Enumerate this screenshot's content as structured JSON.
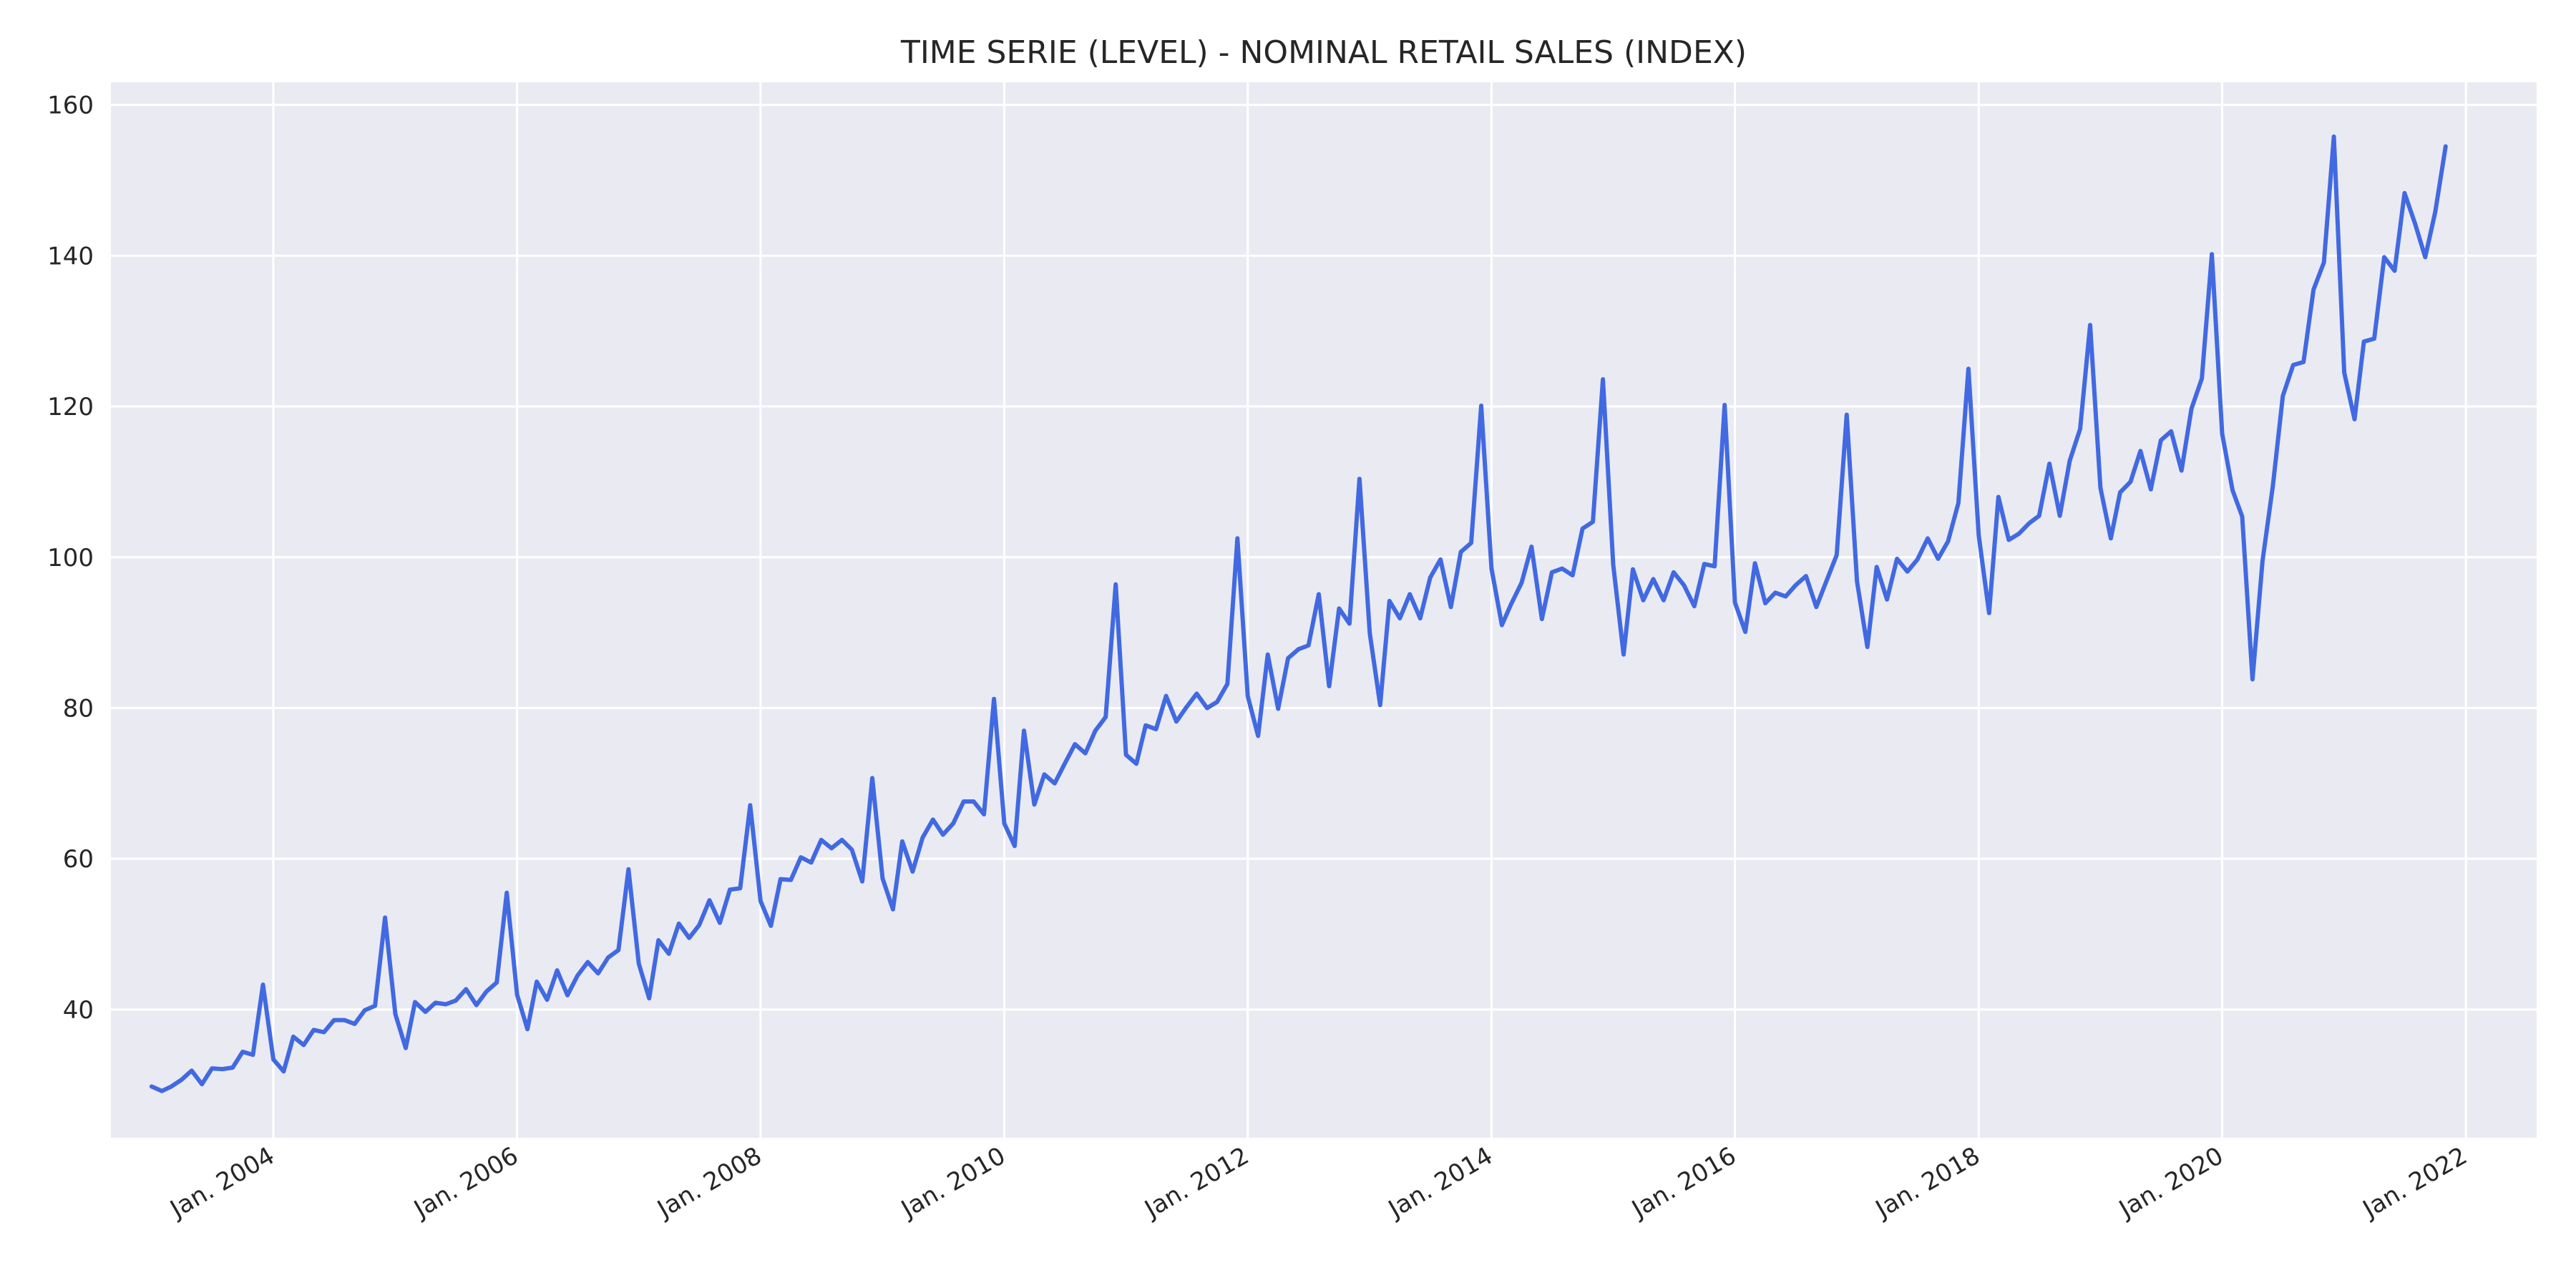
{
  "chart_data": {
    "type": "line",
    "title": "TIME SERIE (LEVEL) - NOMINAL RETAIL SALES (INDEX)",
    "xlabel": "",
    "ylabel": "",
    "x_range": [
      "2002-09-01",
      "2022-08-01"
    ],
    "ylim": [
      23,
      163
    ],
    "grid": true,
    "legend": "none",
    "x_ticks": [
      {
        "date": "2004-01-01",
        "label": "Jan. 2004"
      },
      {
        "date": "2006-01-01",
        "label": "Jan. 2006"
      },
      {
        "date": "2008-01-01",
        "label": "Jan. 2008"
      },
      {
        "date": "2010-01-01",
        "label": "Jan. 2010"
      },
      {
        "date": "2012-01-01",
        "label": "Jan. 2012"
      },
      {
        "date": "2014-01-01",
        "label": "Jan. 2014"
      },
      {
        "date": "2016-01-01",
        "label": "Jan. 2016"
      },
      {
        "date": "2018-01-01",
        "label": "Jan. 2018"
      },
      {
        "date": "2020-01-01",
        "label": "Jan. 2020"
      },
      {
        "date": "2022-01-01",
        "label": "Jan. 2022"
      }
    ],
    "y_ticks": [
      40,
      60,
      80,
      100,
      120,
      140,
      160
    ],
    "colors": {
      "line": "#4169e1",
      "plot_bg": "#eaeaf2",
      "grid": "#ffffff"
    },
    "series": [
      {
        "start": "2003-01",
        "frequency": "monthly",
        "values": [
          29.8,
          29.2,
          29.8,
          30.7,
          31.9,
          30.1,
          32.2,
          32.1,
          32.3,
          34.4,
          34.0,
          43.3,
          33.4,
          31.8,
          36.4,
          35.3,
          37.3,
          37.0,
          38.6,
          38.6,
          38.1,
          39.9,
          40.5,
          52.2,
          39.4,
          34.9,
          41.0,
          39.7,
          40.9,
          40.7,
          41.2,
          42.7,
          40.6,
          42.4,
          43.6,
          55.5,
          42.0,
          37.4,
          43.7,
          41.3,
          45.2,
          41.9,
          44.5,
          46.3,
          44.8,
          46.9,
          47.9,
          58.6,
          46.1,
          41.5,
          49.2,
          47.4,
          51.4,
          49.5,
          51.2,
          54.5,
          51.5,
          55.9,
          56.1,
          67.1,
          54.4,
          51.1,
          57.3,
          57.2,
          60.2,
          59.5,
          62.5,
          61.4,
          62.5,
          61.2,
          57.0,
          70.7,
          57.4,
          53.3,
          62.3,
          58.3,
          62.8,
          65.2,
          63.2,
          64.7,
          67.6,
          67.6,
          65.9,
          81.2,
          64.7,
          61.7,
          77.0,
          67.2,
          71.2,
          70.0,
          72.6,
          75.2,
          74.0,
          77.0,
          78.8,
          96.4,
          73.8,
          72.6,
          77.7,
          77.2,
          81.6,
          78.2,
          80.1,
          81.9,
          80.0,
          80.8,
          83.2,
          102.5,
          81.6,
          76.3,
          87.1,
          79.9,
          86.6,
          87.8,
          88.3,
          95.1,
          82.9,
          93.2,
          91.2,
          110.4,
          89.9,
          80.4,
          94.2,
          91.9,
          95.1,
          91.9,
          97.3,
          99.7,
          93.4,
          100.7,
          101.9,
          120.1,
          98.5,
          91.0,
          93.8,
          96.6,
          101.4,
          91.8,
          98.0,
          98.5,
          97.6,
          103.8,
          104.7,
          123.6,
          99.0,
          87.1,
          98.4,
          94.3,
          97.1,
          94.3,
          98.0,
          96.3,
          93.5,
          99.1,
          98.8,
          120.2,
          94.0,
          90.1,
          99.2,
          93.9,
          95.3,
          94.8,
          96.3,
          97.5,
          93.4,
          96.8,
          100.3,
          118.9,
          96.8,
          88.1,
          98.7,
          94.4,
          99.8,
          98.1,
          99.7,
          102.5,
          99.8,
          102.1,
          107.2,
          125.0,
          102.9,
          92.6,
          108.0,
          102.3,
          103.1,
          104.5,
          105.5,
          112.4,
          105.5,
          112.8,
          117.0,
          130.8,
          109.2,
          102.5,
          108.6,
          110.0,
          114.1,
          109.0,
          115.5,
          116.7,
          111.5,
          119.7,
          123.7,
          140.2,
          116.4,
          108.9,
          105.4,
          83.8,
          99.5,
          109.5,
          121.4,
          125.5,
          125.9,
          135.5,
          139.1,
          155.8,
          124.5,
          118.3,
          128.6,
          129.0,
          139.8,
          138.0,
          148.3,
          144.3,
          139.8,
          145.8,
          154.5
        ]
      }
    ]
  }
}
